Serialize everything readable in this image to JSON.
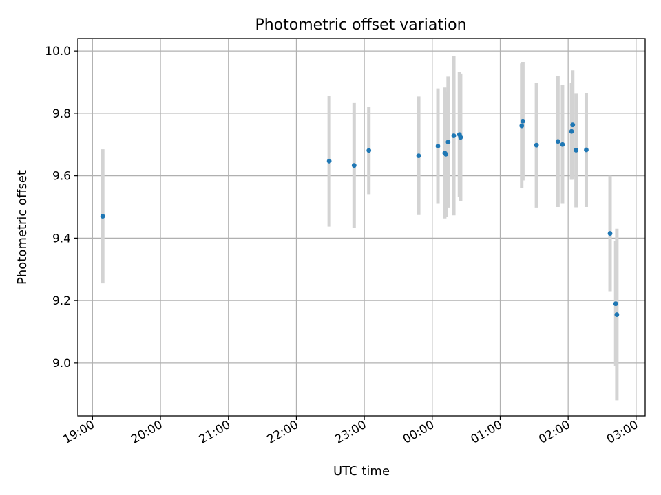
{
  "chart_data": {
    "type": "scatter",
    "title": "Photometric offset variation",
    "xlabel": "UTC time",
    "ylabel": "Photometric offset",
    "x_axis_type": "time",
    "x_range": [
      "18:47",
      "03:08"
    ],
    "x_ticks": [
      "19:00",
      "20:00",
      "21:00",
      "22:00",
      "23:00",
      "00:00",
      "01:00",
      "02:00",
      "03:00"
    ],
    "x_tick_values_hours": [
      19,
      20,
      21,
      22,
      23,
      24,
      25,
      26,
      27
    ],
    "ylim": [
      8.83,
      10.04
    ],
    "y_ticks": [
      "9.0",
      "9.2",
      "9.4",
      "9.6",
      "9.8",
      "10.0"
    ],
    "y_tick_values": [
      9.0,
      9.2,
      9.4,
      9.6,
      9.8,
      10.0
    ],
    "grid": true,
    "marker_color": "#1f77b4",
    "errorbar_color": "#d3d3d3",
    "points": [
      {
        "time": "19:09",
        "y": 9.47,
        "err": 0.215
      },
      {
        "time": "22:29",
        "y": 9.647,
        "err": 0.21
      },
      {
        "time": "22:51",
        "y": 9.633,
        "err": 0.2
      },
      {
        "time": "23:04",
        "y": 9.681,
        "err": 0.14
      },
      {
        "time": "23:48",
        "y": 9.664,
        "err": 0.19
      },
      {
        "time": "00:05",
        "y": 9.695,
        "err": 0.185
      },
      {
        "time": "00:11",
        "y": 9.673,
        "err": 0.21
      },
      {
        "time": "00:12",
        "y": 9.669,
        "err": 0.2
      },
      {
        "time": "00:14",
        "y": 9.708,
        "err": 0.21
      },
      {
        "time": "00:19",
        "y": 9.728,
        "err": 0.255
      },
      {
        "time": "00:24",
        "y": 9.732,
        "err": 0.2
      },
      {
        "time": "00:25",
        "y": 9.723,
        "err": 0.205
      },
      {
        "time": "01:19",
        "y": 9.76,
        "err": 0.2
      },
      {
        "time": "01:20",
        "y": 9.775,
        "err": 0.19
      },
      {
        "time": "01:32",
        "y": 9.698,
        "err": 0.2
      },
      {
        "time": "01:51",
        "y": 9.71,
        "err": 0.21
      },
      {
        "time": "01:55",
        "y": 9.7,
        "err": 0.19
      },
      {
        "time": "02:03",
        "y": 9.742,
        "err": 0.155
      },
      {
        "time": "02:04",
        "y": 9.763,
        "err": 0.175
      },
      {
        "time": "02:07",
        "y": 9.682,
        "err": 0.183
      },
      {
        "time": "02:16",
        "y": 9.683,
        "err": 0.183
      },
      {
        "time": "02:37",
        "y": 9.415,
        "err": 0.185
      },
      {
        "time": "02:42",
        "y": 9.19,
        "err": 0.2
      },
      {
        "time": "02:43",
        "y": 9.155,
        "err": 0.275
      }
    ]
  }
}
